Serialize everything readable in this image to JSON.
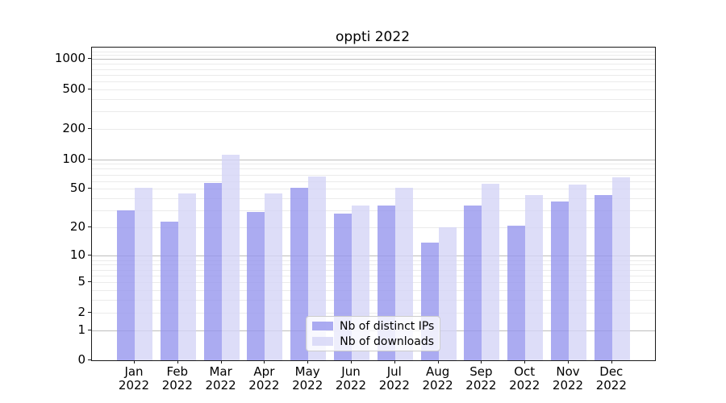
{
  "chart_data": {
    "type": "bar",
    "title": "oppti 2022",
    "categories": [
      "Jan",
      "Feb",
      "Mar",
      "Apr",
      "May",
      "Jun",
      "Jul",
      "Aug",
      "Sep",
      "Oct",
      "Nov",
      "Dec"
    ],
    "category_year": "2022",
    "series": [
      {
        "name": "Nb of distinct IPs",
        "color": "rgba(150,150,237,0.8)",
        "color_hex_displayed": "#ababf0",
        "values": [
          30,
          23,
          58,
          29,
          51,
          28,
          34,
          14,
          34,
          21,
          37,
          43
        ]
      },
      {
        "name": "Nb of downloads",
        "color": "rgba(213,213,246,0.8)",
        "color_hex_displayed": "#dedef8",
        "values": [
          51,
          45,
          110,
          45,
          67,
          34,
          51,
          20,
          57,
          43,
          55,
          66
        ]
      }
    ],
    "xlabel": "",
    "ylabel": "",
    "y_axis": {
      "scale": "symlog (y position proportional to log10(1+value))",
      "ticks": [
        0,
        1,
        2,
        5,
        10,
        20,
        50,
        100,
        200,
        500,
        1000
      ],
      "tick_labels": [
        "0",
        "1",
        "2",
        "5",
        "10",
        "20",
        "50",
        "100",
        "200",
        "500",
        "1000"
      ],
      "major_gridlines": [
        1,
        10,
        100,
        1000
      ],
      "minor_gridlines": [
        2,
        3,
        4,
        5,
        6,
        7,
        8,
        9,
        20,
        30,
        40,
        50,
        60,
        70,
        80,
        90,
        200,
        300,
        400,
        500,
        600,
        700,
        800,
        900,
        1100,
        1200
      ],
      "ylim": [
        0,
        1300
      ],
      "grid": true
    },
    "legend": {
      "position": "lower center",
      "entries": [
        "Nb of distinct IPs",
        "Nb of downloads"
      ]
    }
  }
}
